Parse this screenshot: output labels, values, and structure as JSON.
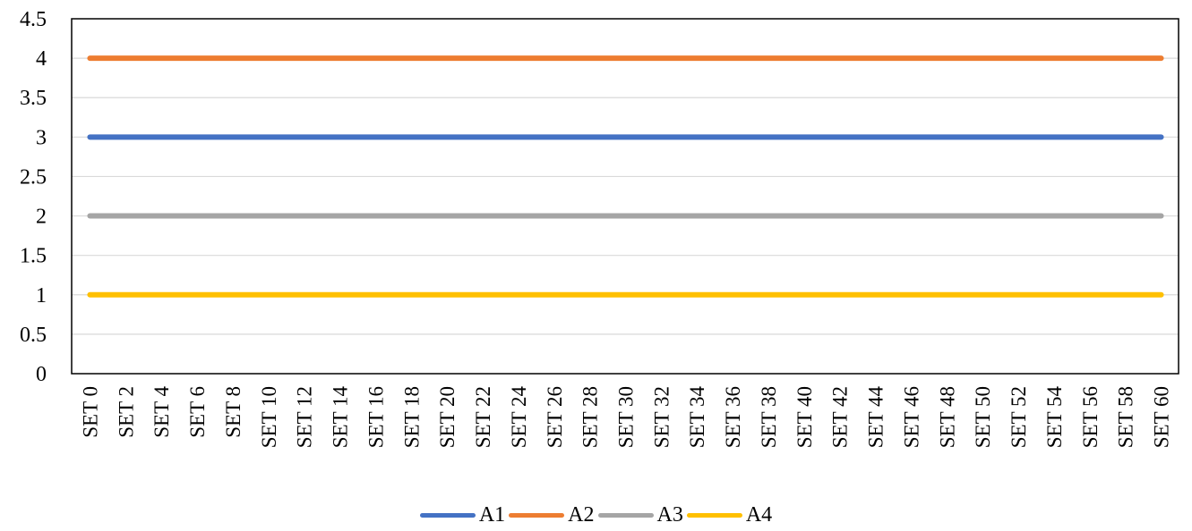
{
  "chart_data": {
    "type": "line",
    "categories": [
      "SET 0",
      "SET 2",
      "SET 4",
      "SET 6",
      "SET 8",
      "SET 10",
      "SET 12",
      "SET 14",
      "SET 16",
      "SET 18",
      "SET 20",
      "SET 22",
      "SET 24",
      "SET 26",
      "SET 28",
      "SET 30",
      "SET 32",
      "SET 34",
      "SET 36",
      "SET 38",
      "SET 40",
      "SET 42",
      "SET 44",
      "SET 46",
      "SET 48",
      "SET 50",
      "SET 52",
      "SET 54",
      "SET 56",
      "SET 58",
      "SET 60"
    ],
    "series": [
      {
        "name": "A1",
        "color": "#4472C4",
        "values": [
          3,
          3,
          3,
          3,
          3,
          3,
          3,
          3,
          3,
          3,
          3,
          3,
          3,
          3,
          3,
          3,
          3,
          3,
          3,
          3,
          3,
          3,
          3,
          3,
          3,
          3,
          3,
          3,
          3,
          3,
          3
        ]
      },
      {
        "name": "A2",
        "color": "#ED7D31",
        "values": [
          4,
          4,
          4,
          4,
          4,
          4,
          4,
          4,
          4,
          4,
          4,
          4,
          4,
          4,
          4,
          4,
          4,
          4,
          4,
          4,
          4,
          4,
          4,
          4,
          4,
          4,
          4,
          4,
          4,
          4,
          4
        ]
      },
      {
        "name": "A3",
        "color": "#A5A5A5",
        "values": [
          2,
          2,
          2,
          2,
          2,
          2,
          2,
          2,
          2,
          2,
          2,
          2,
          2,
          2,
          2,
          2,
          2,
          2,
          2,
          2,
          2,
          2,
          2,
          2,
          2,
          2,
          2,
          2,
          2,
          2,
          2
        ]
      },
      {
        "name": "A4",
        "color": "#FFC000",
        "values": [
          1,
          1,
          1,
          1,
          1,
          1,
          1,
          1,
          1,
          1,
          1,
          1,
          1,
          1,
          1,
          1,
          1,
          1,
          1,
          1,
          1,
          1,
          1,
          1,
          1,
          1,
          1,
          1,
          1,
          1,
          1
        ]
      }
    ],
    "y_ticks": [
      "0",
      "0.5",
      "1",
      "1.5",
      "2",
      "2.5",
      "3",
      "3.5",
      "4",
      "4.5"
    ],
    "ylim": [
      0,
      4.5
    ],
    "grid": true,
    "legend_position": "bottom"
  }
}
